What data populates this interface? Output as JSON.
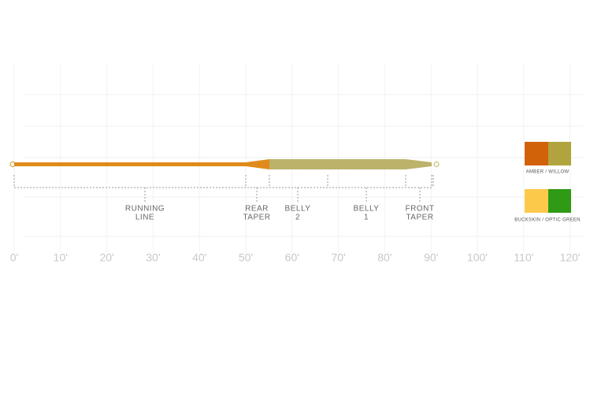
{
  "axis": {
    "ticks": [
      "0'",
      "10'",
      "20'",
      "30'",
      "40'",
      "50'",
      "60'",
      "70'",
      "80'",
      "90'",
      "100'",
      "110'",
      "120'"
    ]
  },
  "sections": [
    {
      "lines": [
        "RUNNING",
        "LINE"
      ]
    },
    {
      "lines": [
        "REAR",
        "TAPER"
      ]
    },
    {
      "lines": [
        "BELLY",
        "2"
      ]
    },
    {
      "lines": [
        "BELLY",
        "1"
      ]
    },
    {
      "lines": [
        "FRONT",
        "TAPER"
      ]
    }
  ],
  "colorways": [
    {
      "label": "AMBER / WILLOW"
    },
    {
      "label": "BUCKSKIN / OPTIC GREEN"
    }
  ]
}
